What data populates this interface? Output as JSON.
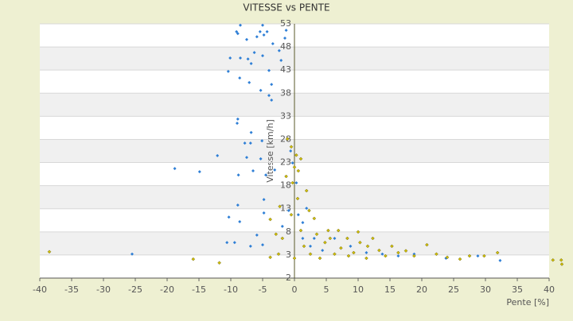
{
  "chart_data": {
    "type": "scatter",
    "title": "VITESSE vs PENTE",
    "x_label": "Pente [%]",
    "y_label": "Vitesse [km/h]",
    "xlim": [
      -40,
      40
    ],
    "xticks": [
      -40,
      -35,
      -30,
      -25,
      -20,
      -15,
      -10,
      -5,
      0,
      5,
      10,
      15,
      20,
      25,
      30,
      35,
      40
    ],
    "ylim": [
      -2,
      53
    ],
    "yticks": [
      -2,
      3,
      8,
      13,
      18,
      23,
      28,
      33,
      38,
      43,
      48,
      53
    ],
    "grid": true,
    "series": [
      {
        "color": "#2f7fd6",
        "x": [
          -5,
          -8.5,
          -9.1,
          -8.9,
          -5.9,
          -4.8,
          -4.3,
          -5.4,
          -1.3,
          -1.5,
          -3.4,
          -7.5,
          -6.3,
          -10.1,
          -8.5,
          -7.3,
          -5,
          -2.4,
          -2.1,
          -6.8,
          -10.4,
          -4,
          -8.6,
          -7.1,
          -3.6,
          -5.3,
          -4,
          -3.6,
          -8.9,
          -9,
          -6.8,
          -7.8,
          -6.9,
          -5.1,
          -12.1,
          -7.5,
          -5.3,
          -18.8,
          -14.9,
          -8.8,
          -6.5,
          -4.5,
          -3.1,
          -8.9,
          -4.8,
          -10.3,
          -8.6,
          -4.8,
          -5.9,
          -10.6,
          -9.4,
          -25.5,
          -6.9,
          -5,
          -0.6,
          -0.3,
          0.3,
          0.6,
          1.3,
          1.9,
          1.3,
          3.1,
          4.4,
          6.3,
          8.8,
          11.3,
          13.8,
          16.3,
          18.8,
          23.8,
          28.8,
          32.3,
          -1.9,
          -0.9,
          2.5
        ],
        "values": [
          52.7,
          52.7,
          51.3,
          50.9,
          50.2,
          50.6,
          51.3,
          51.3,
          51.6,
          49.9,
          48.7,
          49.6,
          46.8,
          45.6,
          45.6,
          45.4,
          46.1,
          47.2,
          45.1,
          44.4,
          42.7,
          42.9,
          41.3,
          40.3,
          39.9,
          38.6,
          37.5,
          36.5,
          32.4,
          31.5,
          29.5,
          27.2,
          27.2,
          27.7,
          24.5,
          24.1,
          23.8,
          21.7,
          21,
          20.3,
          21.2,
          20.3,
          21.4,
          13.8,
          15,
          11.2,
          10.2,
          12.1,
          7.3,
          5.7,
          5.7,
          3.2,
          4.9,
          5.2,
          25.5,
          22.9,
          18.6,
          11.7,
          10,
          13.1,
          6.6,
          6.6,
          4,
          6.6,
          4.9,
          3.5,
          3.2,
          2.8,
          3.2,
          2.3,
          2.8,
          1.8,
          9.2,
          12.6,
          4.9
        ]
      },
      {
        "color": "#d2c000",
        "x": [
          -38.5,
          -15.9,
          -11.8,
          -2.5,
          -3.8,
          -1.1,
          -0.5,
          0,
          -0.3,
          0.5,
          -0.5,
          1,
          1.9,
          1.5,
          3.5,
          4.8,
          5.3,
          6.3,
          7.3,
          8.3,
          9.3,
          10.3,
          11.3,
          12.3,
          13.3,
          14.3,
          15.3,
          16.3,
          17.5,
          18.8,
          20.8,
          22.3,
          24,
          26,
          27.5,
          29.8,
          31.9,
          40.6,
          41.9,
          42,
          2.5,
          4,
          5.6,
          6.9,
          8.5,
          10,
          11.5,
          0,
          -1.9,
          -2.9,
          -3.8,
          -2.3,
          0.3,
          0.6,
          1,
          -1.3,
          2.3,
          3.1
        ],
        "values": [
          3.7,
          2.1,
          1.3,
          3.2,
          2.5,
          28.1,
          26.4,
          22,
          18.6,
          15.2,
          11.7,
          8.3,
          16.9,
          4.9,
          7.5,
          5.7,
          8.3,
          3.2,
          4.5,
          6.6,
          3.5,
          5.7,
          2.3,
          6.6,
          4,
          2.8,
          4.9,
          3.5,
          3.9,
          2.8,
          5.2,
          3.2,
          2.5,
          2.1,
          2.8,
          2.8,
          3.5,
          1.9,
          1.9,
          1,
          3.2,
          2.3,
          6.6,
          8.3,
          2.8,
          8,
          4.9,
          2.3,
          6.6,
          7.5,
          10.7,
          13.5,
          24.6,
          21.2,
          23.8,
          20,
          12.6,
          10.9
        ]
      }
    ]
  }
}
